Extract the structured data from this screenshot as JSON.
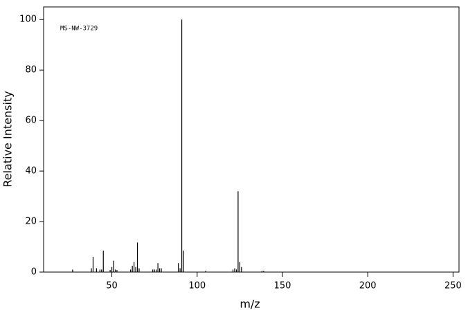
{
  "chart_data": {
    "type": "stem",
    "annotation": "MS-NW-3729",
    "x_label": "m/z",
    "y_label": "Relative Intensity",
    "color": "#000000",
    "xlim": [
      10,
      253.5
    ],
    "ylim": [
      0,
      105
    ],
    "xticks": [
      50,
      100,
      150,
      200,
      250
    ],
    "yticks": [
      0,
      20,
      40,
      60,
      80,
      100
    ],
    "x": [
      27,
      38,
      39,
      41,
      43,
      44,
      45,
      49,
      50,
      51,
      52,
      53,
      61,
      62,
      63,
      64,
      65,
      66,
      74,
      75,
      76,
      77,
      78,
      79,
      89,
      90,
      91,
      92,
      105,
      121,
      122,
      123,
      124,
      125,
      126,
      138,
      139
    ],
    "values": [
      1,
      1.5,
      6,
      1.5,
      1,
      1,
      8.5,
      0.8,
      2,
      4.5,
      1,
      0.8,
      1,
      2.5,
      4,
      2,
      11.7,
      1.5,
      1,
      1,
      1,
      3.5,
      1.5,
      1.5,
      3.5,
      1.5,
      100,
      8.5,
      0.5,
      1,
      1.5,
      1,
      32,
      4,
      2,
      0.5,
      0.5
    ]
  }
}
